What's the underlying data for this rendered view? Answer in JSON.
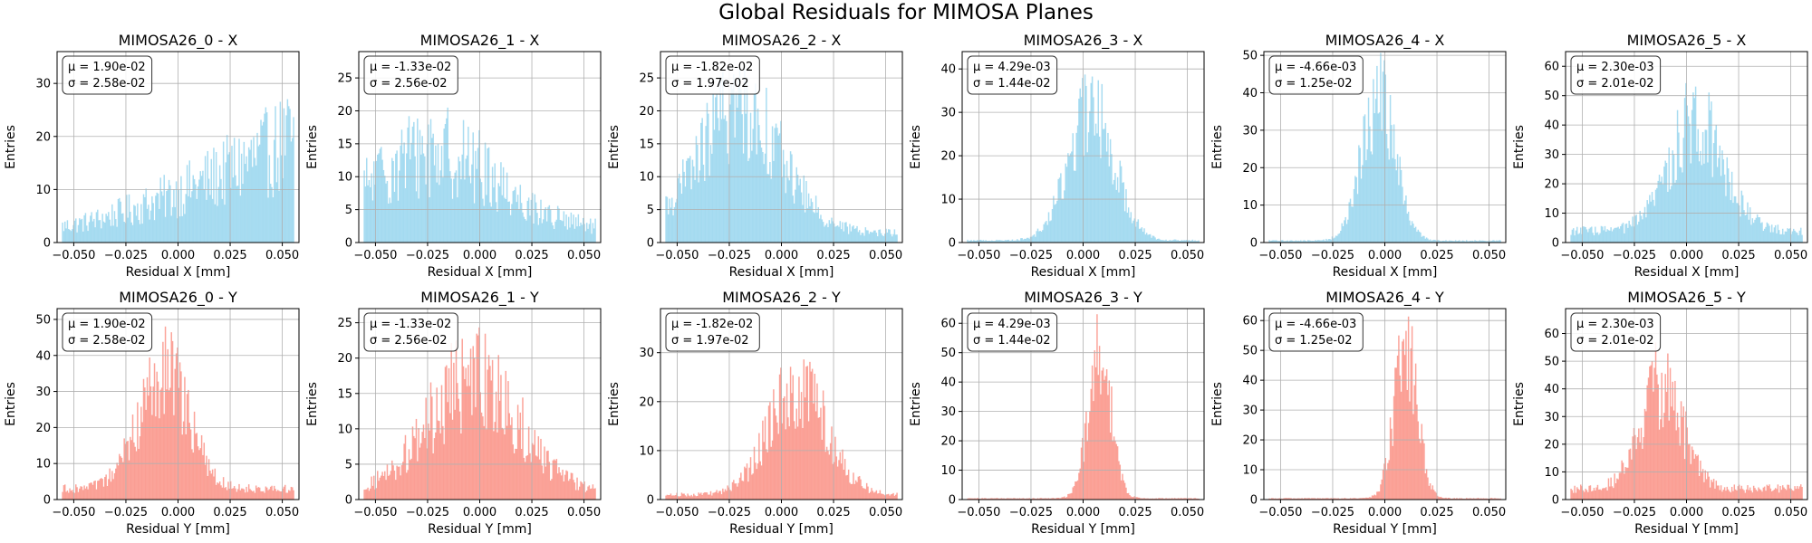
{
  "figure": {
    "title": "Global Residuals for MIMOSA Planes",
    "x_color": "#87ceeb",
    "y_color": "#fa8072"
  },
  "chart_data": [
    {
      "type": "bar",
      "title": "MIMOSA26_0 - X",
      "xlabel": "Residual X [mm]",
      "ylabel": "Entries",
      "xlim": [
        -0.058,
        0.058
      ],
      "ylim": [
        0,
        36
      ],
      "yticks": [
        0,
        10,
        20,
        30
      ],
      "xticks": [
        -0.05,
        -0.025,
        0,
        0.025,
        0.05
      ],
      "xtick_labels": [
        "−0.050",
        "−0.025",
        "0.000",
        "0.025",
        "0.050"
      ],
      "stats": {
        "mu": "μ = 1.90e-02",
        "sigma": "σ = 2.58e-02"
      },
      "grid": true,
      "color": "#87ceeb",
      "shape": {
        "kind": "ramp",
        "peak": 20,
        "low": 3,
        "noise": 0.45
      }
    },
    {
      "type": "bar",
      "title": "MIMOSA26_1 - X",
      "xlabel": "Residual X [mm]",
      "ylabel": "Entries",
      "xlim": [
        -0.058,
        0.058
      ],
      "ylim": [
        0,
        29
      ],
      "yticks": [
        0,
        5,
        10,
        15,
        20,
        25
      ],
      "xticks": [
        -0.05,
        -0.025,
        0,
        0.025,
        0.05
      ],
      "xtick_labels": [
        "−0.050",
        "−0.025",
        "0.000",
        "0.025",
        "0.050"
      ],
      "stats": {
        "mu": "μ = -1.33e-02",
        "sigma": "σ = 2.56e-02"
      },
      "grid": true,
      "color": "#87ceeb",
      "shape": {
        "kind": "gauss",
        "center": -0.022,
        "width": 0.03,
        "peak": 12,
        "base": 2,
        "noise": 0.45
      }
    },
    {
      "type": "bar",
      "title": "MIMOSA26_2 - X",
      "xlabel": "Residual X [mm]",
      "ylabel": "Entries",
      "xlim": [
        -0.058,
        0.058
      ],
      "ylim": [
        0,
        29
      ],
      "yticks": [
        0,
        5,
        10,
        15,
        20,
        25
      ],
      "xticks": [
        -0.05,
        -0.025,
        0,
        0.025,
        0.05
      ],
      "xtick_labels": [
        "−0.050",
        "−0.025",
        "0.000",
        "0.025",
        "0.050"
      ],
      "stats": {
        "mu": "μ = -1.82e-02",
        "sigma": "σ = 1.97e-02"
      },
      "grid": true,
      "color": "#87ceeb",
      "shape": {
        "kind": "gauss",
        "center": -0.02,
        "width": 0.02,
        "peak": 19,
        "base": 1.5,
        "noise": 0.35
      }
    },
    {
      "type": "bar",
      "title": "MIMOSA26_3 - X",
      "xlabel": "Residual X [mm]",
      "ylabel": "Entries",
      "xlim": [
        -0.058,
        0.058
      ],
      "ylim": [
        0,
        44
      ],
      "yticks": [
        0,
        10,
        20,
        30,
        40
      ],
      "xticks": [
        -0.05,
        -0.025,
        0,
        0.025,
        0.05
      ],
      "xtick_labels": [
        "−0.050",
        "−0.025",
        "0.000",
        "0.025",
        "0.050"
      ],
      "stats": {
        "mu": "μ = 4.29e-03",
        "sigma": "σ = 1.44e-02"
      },
      "grid": true,
      "color": "#87ceeb",
      "shape": {
        "kind": "gauss",
        "center": 0.004,
        "width": 0.011,
        "peak": 30,
        "base": 0.5,
        "noise": 0.3
      }
    },
    {
      "type": "bar",
      "title": "MIMOSA26_4 - X",
      "xlabel": "Residual X [mm]",
      "ylabel": "Entries",
      "xlim": [
        -0.058,
        0.058
      ],
      "ylim": [
        0,
        51
      ],
      "yticks": [
        0,
        10,
        20,
        30,
        40,
        50
      ],
      "xticks": [
        -0.05,
        -0.025,
        0,
        0.025,
        0.05
      ],
      "xtick_labels": [
        "−0.050",
        "−0.025",
        "0.000",
        "0.025",
        "0.050"
      ],
      "stats": {
        "mu": "μ = -4.66e-03",
        "sigma": "σ = 1.25e-02"
      },
      "grid": true,
      "color": "#87ceeb",
      "shape": {
        "kind": "gauss",
        "center": -0.003,
        "width": 0.008,
        "peak": 38,
        "base": 0.5,
        "noise": 0.3
      }
    },
    {
      "type": "bar",
      "title": "MIMOSA26_5 - X",
      "xlabel": "Residual X [mm]",
      "ylabel": "Entries",
      "xlim": [
        -0.058,
        0.058
      ],
      "ylim": [
        0,
        65
      ],
      "yticks": [
        0,
        10,
        20,
        30,
        40,
        50,
        60
      ],
      "xticks": [
        -0.05,
        -0.025,
        0,
        0.025,
        0.05
      ],
      "xtick_labels": [
        "−0.050",
        "−0.025",
        "0.000",
        "0.025",
        "0.050"
      ],
      "stats": {
        "mu": "μ = 2.30e-03",
        "sigma": "σ = 2.01e-02"
      },
      "grid": true,
      "color": "#87ceeb",
      "shape": {
        "kind": "gauss",
        "center": 0.005,
        "width": 0.013,
        "peak": 38,
        "base": 4,
        "noise": 0.35
      }
    },
    {
      "type": "bar",
      "title": "MIMOSA26_0 - Y",
      "xlabel": "Residual Y [mm]",
      "ylabel": "Entries",
      "xlim": [
        -0.058,
        0.058
      ],
      "ylim": [
        0,
        53
      ],
      "yticks": [
        0,
        10,
        20,
        30,
        40,
        50
      ],
      "xticks": [
        -0.05,
        -0.025,
        0,
        0.025,
        0.05
      ],
      "xtick_labels": [
        "−0.050",
        "−0.025",
        "0.000",
        "0.025",
        "0.050"
      ],
      "stats": {
        "mu": "μ = 1.90e-02",
        "sigma": "σ = 2.58e-02"
      },
      "grid": true,
      "color": "#fa8072",
      "shape": {
        "kind": "gauss",
        "center": -0.007,
        "width": 0.012,
        "peak": 32,
        "base": 3,
        "noise": 0.35
      }
    },
    {
      "type": "bar",
      "title": "MIMOSA26_1 - Y",
      "xlabel": "Residual Y [mm]",
      "ylabel": "Entries",
      "xlim": [
        -0.058,
        0.058
      ],
      "ylim": [
        0,
        27
      ],
      "yticks": [
        0,
        5,
        10,
        15,
        20,
        25
      ],
      "xticks": [
        -0.05,
        -0.025,
        0,
        0.025,
        0.05
      ],
      "xtick_labels": [
        "−0.050",
        "−0.025",
        "0.000",
        "0.025",
        "0.050"
      ],
      "stats": {
        "mu": "μ = -1.33e-02",
        "sigma": "σ = 2.56e-02"
      },
      "grid": true,
      "color": "#fa8072",
      "shape": {
        "kind": "gauss",
        "center": -0.003,
        "width": 0.022,
        "peak": 16,
        "base": 1,
        "noise": 0.4
      }
    },
    {
      "type": "bar",
      "title": "MIMOSA26_2 - Y",
      "xlabel": "Residual Y [mm]",
      "ylabel": "Entries",
      "xlim": [
        -0.058,
        0.058
      ],
      "ylim": [
        0,
        39
      ],
      "yticks": [
        0,
        10,
        20,
        30
      ],
      "xticks": [
        -0.05,
        -0.025,
        0,
        0.025,
        0.05
      ],
      "xtick_labels": [
        "−0.050",
        "−0.025",
        "0.000",
        "0.025",
        "0.050"
      ],
      "stats": {
        "mu": "μ = -1.82e-02",
        "sigma": "σ = 1.97e-02"
      },
      "grid": true,
      "color": "#fa8072",
      "shape": {
        "kind": "gauss",
        "center": 0.008,
        "width": 0.014,
        "peak": 22,
        "base": 1,
        "noise": 0.35
      }
    },
    {
      "type": "bar",
      "title": "MIMOSA26_3 - Y",
      "xlabel": "Residual Y [mm]",
      "ylabel": "Entries",
      "xlim": [
        -0.058,
        0.058
      ],
      "ylim": [
        0,
        65
      ],
      "yticks": [
        0,
        10,
        20,
        30,
        40,
        50,
        60
      ],
      "xticks": [
        -0.05,
        -0.025,
        0,
        0.025,
        0.05
      ],
      "xtick_labels": [
        "−0.050",
        "−0.025",
        "0.000",
        "0.025",
        "0.050"
      ],
      "stats": {
        "mu": "μ = 4.29e-03",
        "sigma": "σ = 1.44e-02"
      },
      "grid": true,
      "color": "#fa8072",
      "shape": {
        "kind": "gauss",
        "center": 0.008,
        "width": 0.0055,
        "peak": 48,
        "base": 0.4,
        "noise": 0.3
      }
    },
    {
      "type": "bar",
      "title": "MIMOSA26_4 - Y",
      "xlabel": "Residual Y [mm]",
      "ylabel": "Entries",
      "xlim": [
        -0.058,
        0.058
      ],
      "ylim": [
        0,
        64
      ],
      "yticks": [
        0,
        10,
        20,
        30,
        40,
        50,
        60
      ],
      "xticks": [
        -0.05,
        -0.025,
        0,
        0.025,
        0.05
      ],
      "xtick_labels": [
        "−0.050",
        "−0.025",
        "0.000",
        "0.025",
        "0.050"
      ],
      "stats": {
        "mu": "μ = -4.66e-03",
        "sigma": "σ = 1.25e-02"
      },
      "grid": true,
      "color": "#fa8072",
      "shape": {
        "kind": "gauss",
        "center": 0.01,
        "width": 0.0055,
        "peak": 50,
        "base": 0.4,
        "noise": 0.3
      }
    },
    {
      "type": "bar",
      "title": "MIMOSA26_5 - Y",
      "xlabel": "Residual Y [mm]",
      "ylabel": "Entries",
      "xlim": [
        -0.058,
        0.058
      ],
      "ylim": [
        0,
        69
      ],
      "yticks": [
        0,
        10,
        20,
        30,
        40,
        50,
        60
      ],
      "xticks": [
        -0.05,
        -0.025,
        0,
        0.025,
        0.05
      ],
      "xtick_labels": [
        "−0.050",
        "−0.025",
        "0.000",
        "0.025",
        "0.050"
      ],
      "stats": {
        "mu": "μ = 2.30e-03",
        "sigma": "σ = 2.01e-02"
      },
      "grid": true,
      "color": "#fa8072",
      "shape": {
        "kind": "gauss",
        "center": -0.012,
        "width": 0.01,
        "peak": 38,
        "base": 4,
        "noise": 0.35
      }
    }
  ]
}
